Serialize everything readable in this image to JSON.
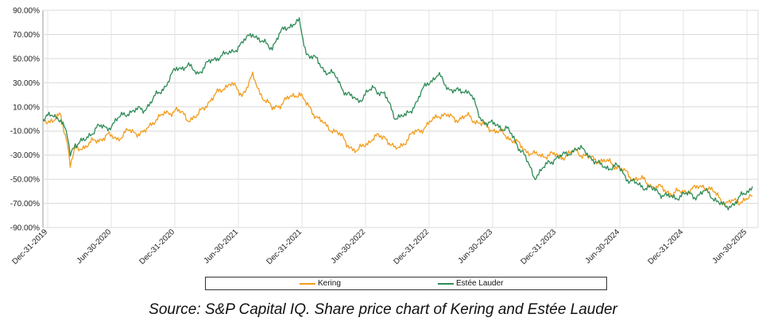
{
  "chart_data": {
    "type": "line",
    "title": "",
    "xlabel": "",
    "ylabel": "",
    "ylim": [
      -90,
      90
    ],
    "y_ticks": [
      "90.00%",
      "70.00%",
      "50.00%",
      "30.00%",
      "10.00%",
      "-10.00%",
      "-30.00%",
      "-50.00%",
      "-70.00%",
      "-90.00%"
    ],
    "x_ticks": [
      "Dec-31-2019",
      "Jun-30-2020",
      "Dec-31-2020",
      "Jun-30-2021",
      "Dec-31-2021",
      "Jun-30-2022",
      "Dec-31-2022",
      "Jun-30-2023",
      "Dec-31-2023",
      "Jun-30-2024",
      "Dec-31-2024",
      "Jun-30-2025"
    ],
    "x_range": [
      "2019-12-31",
      "2025-07-31"
    ],
    "grid": true,
    "legend_position": "bottom",
    "series": [
      {
        "name": "Kering",
        "color": "#f29c1c",
        "points": [
          [
            "2019-12-31",
            0
          ],
          [
            "2020-01-31",
            -2
          ],
          [
            "2020-02-20",
            3
          ],
          [
            "2020-03-10",
            -20
          ],
          [
            "2020-03-18",
            -38
          ],
          [
            "2020-04-01",
            -26
          ],
          [
            "2020-05-01",
            -22
          ],
          [
            "2020-06-01",
            -18
          ],
          [
            "2020-06-30",
            -14
          ],
          [
            "2020-08-01",
            -16
          ],
          [
            "2020-09-01",
            -10
          ],
          [
            "2020-10-15",
            -12
          ],
          [
            "2020-11-15",
            0
          ],
          [
            "2020-12-15",
            4
          ],
          [
            "2021-01-15",
            8
          ],
          [
            "2021-02-15",
            0
          ],
          [
            "2021-03-15",
            2
          ],
          [
            "2021-04-15",
            14
          ],
          [
            "2021-05-15",
            22
          ],
          [
            "2021-06-15",
            30
          ],
          [
            "2021-06-30",
            26
          ],
          [
            "2021-07-20",
            20
          ],
          [
            "2021-08-20",
            35
          ],
          [
            "2021-09-10",
            22
          ],
          [
            "2021-10-15",
            8
          ],
          [
            "2021-11-20",
            15
          ],
          [
            "2021-12-31",
            22
          ],
          [
            "2022-01-20",
            12
          ],
          [
            "2022-02-20",
            2
          ],
          [
            "2022-03-15",
            -6
          ],
          [
            "2022-04-15",
            -10
          ],
          [
            "2022-05-15",
            -20
          ],
          [
            "2022-06-15",
            -28
          ],
          [
            "2022-06-30",
            -22
          ],
          [
            "2022-07-31",
            -16
          ],
          [
            "2022-08-31",
            -14
          ],
          [
            "2022-09-30",
            -26
          ],
          [
            "2022-10-31",
            -18
          ],
          [
            "2022-11-30",
            -10
          ],
          [
            "2022-12-31",
            -6
          ],
          [
            "2023-01-31",
            4
          ],
          [
            "2023-02-28",
            2
          ],
          [
            "2023-03-31",
            0
          ],
          [
            "2023-04-30",
            2
          ],
          [
            "2023-05-31",
            -4
          ],
          [
            "2023-06-30",
            -8
          ],
          [
            "2023-08-15",
            -14
          ],
          [
            "2023-09-30",
            -24
          ],
          [
            "2023-10-31",
            -30
          ],
          [
            "2023-12-31",
            -30
          ],
          [
            "2024-01-31",
            -31
          ],
          [
            "2024-02-28",
            -26
          ],
          [
            "2024-03-31",
            -32
          ],
          [
            "2024-04-30",
            -34
          ],
          [
            "2024-05-31",
            -36
          ],
          [
            "2024-06-30",
            -40
          ],
          [
            "2024-07-31",
            -48
          ],
          [
            "2024-08-31",
            -50
          ],
          [
            "2024-09-30",
            -55
          ],
          [
            "2024-10-31",
            -58
          ],
          [
            "2024-11-30",
            -62
          ],
          [
            "2024-12-31",
            -60
          ],
          [
            "2025-01-31",
            -58
          ],
          [
            "2025-02-28",
            -55
          ],
          [
            "2025-03-31",
            -62
          ],
          [
            "2025-04-30",
            -70
          ],
          [
            "2025-05-31",
            -68
          ],
          [
            "2025-06-30",
            -67
          ],
          [
            "2025-07-15",
            -64
          ]
        ]
      },
      {
        "name": "Estée Lauder",
        "color": "#2e8b57",
        "points": [
          [
            "2019-12-31",
            0
          ],
          [
            "2020-01-31",
            3
          ],
          [
            "2020-02-20",
            0
          ],
          [
            "2020-03-10",
            -15
          ],
          [
            "2020-03-18",
            -30
          ],
          [
            "2020-04-01",
            -20
          ],
          [
            "2020-05-01",
            -18
          ],
          [
            "2020-06-01",
            -6
          ],
          [
            "2020-06-30",
            -8
          ],
          [
            "2020-08-01",
            0
          ],
          [
            "2020-09-01",
            6
          ],
          [
            "2020-10-15",
            8
          ],
          [
            "2020-11-15",
            18
          ],
          [
            "2020-12-15",
            28
          ],
          [
            "2021-01-15",
            42
          ],
          [
            "2021-02-15",
            44
          ],
          [
            "2021-03-15",
            38
          ],
          [
            "2021-04-15",
            46
          ],
          [
            "2021-05-15",
            52
          ],
          [
            "2021-06-15",
            54
          ],
          [
            "2021-06-30",
            58
          ],
          [
            "2021-07-20",
            62
          ],
          [
            "2021-08-20",
            72
          ],
          [
            "2021-09-10",
            64
          ],
          [
            "2021-10-15",
            60
          ],
          [
            "2021-11-20",
            76
          ],
          [
            "2021-12-31",
            80
          ],
          [
            "2022-01-20",
            55
          ],
          [
            "2022-02-20",
            48
          ],
          [
            "2022-03-15",
            40
          ],
          [
            "2022-04-15",
            35
          ],
          [
            "2022-05-15",
            20
          ],
          [
            "2022-06-15",
            16
          ],
          [
            "2022-06-30",
            18
          ],
          [
            "2022-07-31",
            26
          ],
          [
            "2022-08-31",
            20
          ],
          [
            "2022-09-30",
            2
          ],
          [
            "2022-10-31",
            2
          ],
          [
            "2022-11-30",
            14
          ],
          [
            "2022-12-31",
            30
          ],
          [
            "2023-01-31",
            36
          ],
          [
            "2023-02-28",
            26
          ],
          [
            "2023-03-31",
            22
          ],
          [
            "2023-04-30",
            24
          ],
          [
            "2023-05-31",
            0
          ],
          [
            "2023-06-30",
            -4
          ],
          [
            "2023-08-15",
            -8
          ],
          [
            "2023-09-30",
            -28
          ],
          [
            "2023-10-31",
            -48
          ],
          [
            "2023-12-31",
            -32
          ],
          [
            "2024-01-31",
            -30
          ],
          [
            "2024-02-28",
            -24
          ],
          [
            "2024-03-31",
            -28
          ],
          [
            "2024-04-30",
            -38
          ],
          [
            "2024-05-31",
            -40
          ],
          [
            "2024-06-30",
            -40
          ],
          [
            "2024-07-31",
            -52
          ],
          [
            "2024-08-31",
            -55
          ],
          [
            "2024-09-30",
            -58
          ],
          [
            "2024-10-31",
            -62
          ],
          [
            "2024-11-30",
            -66
          ],
          [
            "2024-12-31",
            -62
          ],
          [
            "2025-01-31",
            -64
          ],
          [
            "2025-02-28",
            -60
          ],
          [
            "2025-03-31",
            -66
          ],
          [
            "2025-04-30",
            -74
          ],
          [
            "2025-05-31",
            -68
          ],
          [
            "2025-06-30",
            -60
          ],
          [
            "2025-07-15",
            -56
          ]
        ]
      }
    ]
  },
  "legend": {
    "kering_label": "Kering",
    "kering_color": "#f29c1c",
    "estee_label": "Estée Lauder",
    "estee_color": "#2e8b57"
  },
  "caption": "Source: S&P Capital IQ. Share price chart of Kering and Estée Lauder"
}
